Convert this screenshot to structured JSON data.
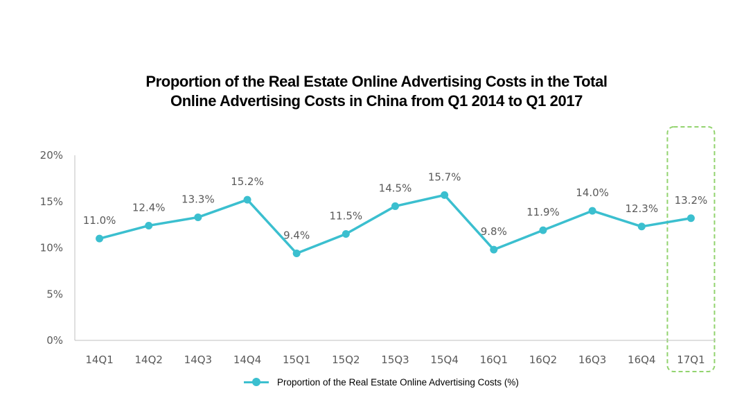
{
  "chart_data": {
    "type": "line",
    "title": "Proportion of the Real Estate Online Advertising Costs in the Total Online Advertising Costs in China from Q1 2014 to Q1 2017",
    "title_lines": [
      "Proportion of the Real Estate Online Advertising Costs in the Total",
      "Online Advertising Costs in China from Q1 2014 to Q1 2017"
    ],
    "categories": [
      "14Q1",
      "14Q2",
      "14Q3",
      "14Q4",
      "15Q1",
      "15Q2",
      "15Q3",
      "15Q4",
      "16Q1",
      "16Q2",
      "16Q3",
      "16Q4",
      "17Q1"
    ],
    "series": [
      {
        "name": "Proportion of the Real Estate Online Advertising Costs (%)",
        "values": [
          11.0,
          12.4,
          13.3,
          15.2,
          9.4,
          11.5,
          14.5,
          15.7,
          9.8,
          11.9,
          14.0,
          12.3,
          13.2
        ],
        "labels": [
          "11.0%",
          "12.4%",
          "13.3%",
          "15.2%",
          "9.4%",
          "11.5%",
          "14.5%",
          "15.7%",
          "9.8%",
          "11.9%",
          "14.0%",
          "12.3%",
          "13.2%"
        ],
        "color": "#3bbfcf"
      }
    ],
    "yticks": [
      "0%",
      "5%",
      "10%",
      "15%",
      "20%"
    ],
    "ylim": [
      0,
      20
    ],
    "grid": false,
    "legend": "bottom-center",
    "highlight": {
      "category": "17Q1",
      "color": "#92d36e",
      "style": "dashed"
    }
  }
}
